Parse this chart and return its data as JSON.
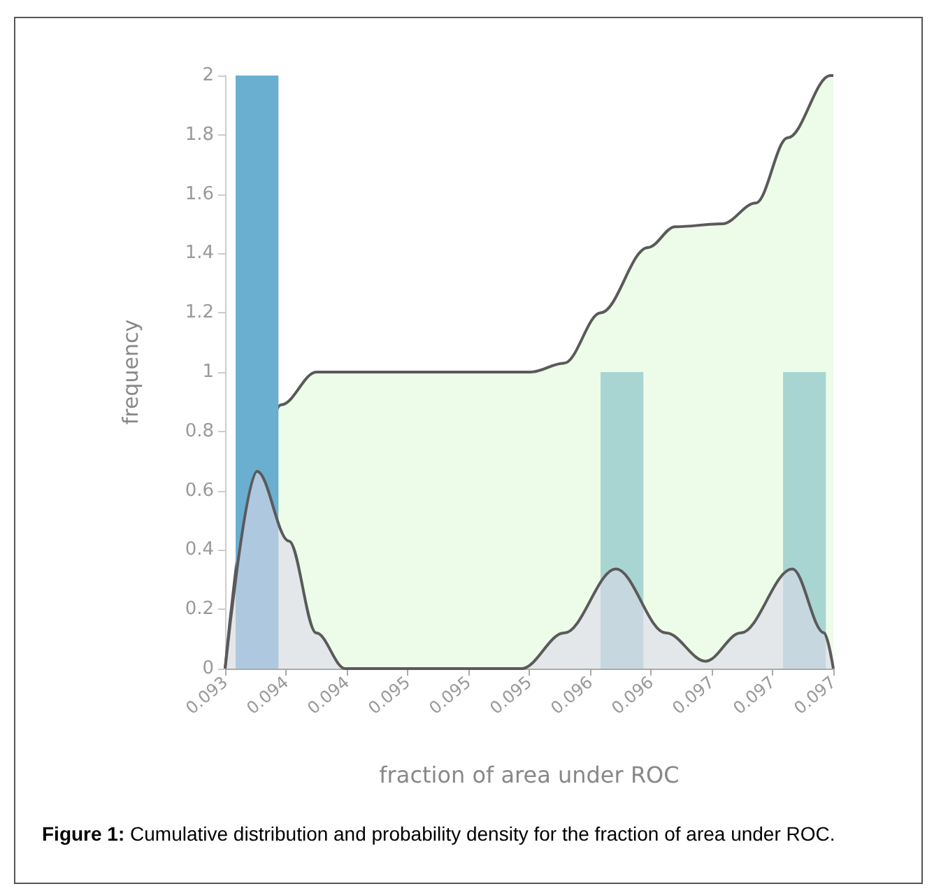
{
  "chart_data": {
    "type": "histogram",
    "xlabel": "fraction of area under ROC",
    "ylabel": "frequency",
    "bins": [
      0.09346,
      0.09376,
      0.09406,
      0.09436,
      0.09466,
      0.09496,
      0.09526,
      0.09556,
      0.09586,
      0.09616,
      0.09646,
      0.09676,
      0.09706,
      0.09736
    ],
    "values": [
      2,
      0,
      0,
      0,
      0,
      0,
      0,
      0,
      1,
      0,
      0,
      0,
      1
    ],
    "colors": [
      "#6aaed0",
      "#a8d5d1",
      "#a8d5d1",
      "#a8d5d1",
      "#a8d5d1",
      "#a8d5d1",
      "#a8d5d1",
      "#a8d5d1",
      "#a8d5d1",
      "#a8d5d1",
      "#a8d5d1",
      "#a8d5d1",
      "#a8d5d1"
    ],
    "series": [
      {
        "type": "area",
        "color": "#edfce8",
        "x": [
          0.0934,
          0.09357,
          0.09377,
          0.094,
          0.09541,
          0.09563,
          0.09587,
          0.09618,
          0.09636,
          0.09667,
          0.09689,
          0.0971,
          0.09738,
          0.0974
        ],
        "values": [
          0,
          0.6,
          0.89,
          1.0,
          1.0,
          1.03,
          1.2,
          1.42,
          1.49,
          1.5,
          1.57,
          1.79,
          2.0,
          2.0
        ]
      },
      {
        "type": "area",
        "color": "#dcd8ea",
        "x": [
          0.0934,
          0.09361,
          0.09382,
          0.094,
          0.09419,
          0.09535,
          0.09563,
          0.09597,
          0.0963,
          0.09656,
          0.09679,
          0.09713,
          0.09734,
          0.0974
        ],
        "values": [
          0,
          0.665,
          0.43,
          0.12,
          0,
          0,
          0.12,
          0.336,
          0.12,
          0.025,
          0.12,
          0.336,
          0.12,
          0
        ]
      }
    ],
    "xlim": [
      0.0934,
      0.0974
    ],
    "xticks": [
      {
        "value": 0.0934,
        "label": "0.093"
      },
      {
        "value": 0.0938,
        "label": "0.094"
      },
      {
        "value": 0.0942,
        "label": "0.094"
      },
      {
        "value": 0.0946,
        "label": "0.095"
      },
      {
        "value": 0.095,
        "label": "0.095"
      },
      {
        "value": 0.0954,
        "label": "0.095"
      },
      {
        "value": 0.0958,
        "label": "0.096"
      },
      {
        "value": 0.0962,
        "label": "0.096"
      },
      {
        "value": 0.0966,
        "label": "0.097"
      },
      {
        "value": 0.097,
        "label": "0.097"
      },
      {
        "value": 0.0974,
        "label": "0.097"
      }
    ],
    "ylim": [
      0,
      2
    ],
    "yticks": [
      0,
      0.2,
      0.4,
      0.6,
      0.8,
      1,
      1.2,
      1.4,
      1.6,
      1.8,
      2
    ],
    "grid": false,
    "annotations": [
      "Figure 1: Cumulative distribution and probability density for the fraction of area under ROC."
    ]
  }
}
